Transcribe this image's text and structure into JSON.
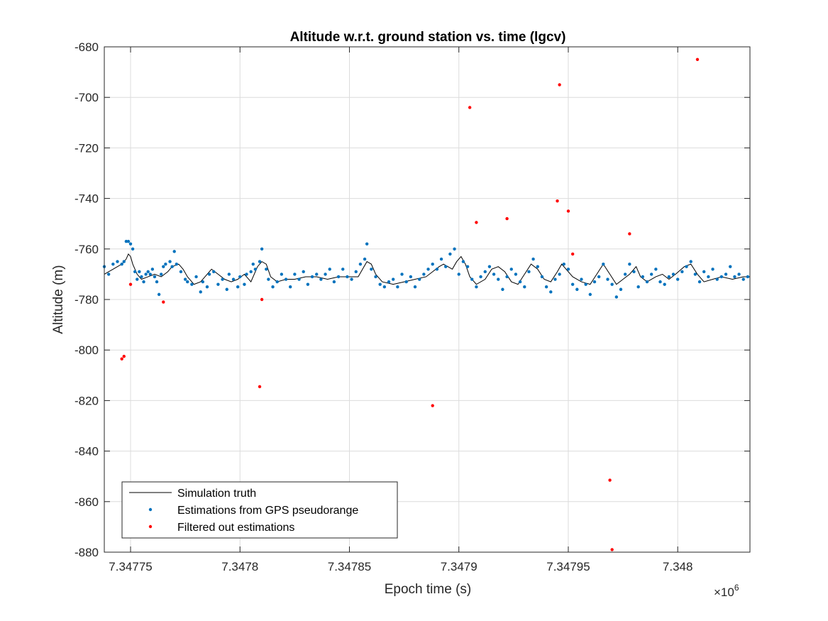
{
  "chart_data": {
    "type": "scatter",
    "title": "Altitude w.r.t. ground station vs. time (lgcv)",
    "xlabel": "Epoch time (s)",
    "ylabel": "Altitude (m)",
    "x_exponent_label": "×10",
    "x_exponent_power": "6",
    "x_scale": 1000000,
    "xlim": [
      7347738,
      7348033
    ],
    "ylim": [
      -880,
      -680
    ],
    "grid": true,
    "legend_position": "bottom-left",
    "x_ticks": [
      {
        "value": 7347750,
        "label": "7.34775"
      },
      {
        "value": 7347800,
        "label": "7.3478"
      },
      {
        "value": 7347850,
        "label": "7.34785"
      },
      {
        "value": 7347900,
        "label": "7.3479"
      },
      {
        "value": 7347950,
        "label": "7.34795"
      },
      {
        "value": 7348000,
        "label": "7.348"
      }
    ],
    "y_ticks": [
      {
        "value": -680,
        "label": "-680"
      },
      {
        "value": -700,
        "label": "-700"
      },
      {
        "value": -720,
        "label": "-720"
      },
      {
        "value": -740,
        "label": "-740"
      },
      {
        "value": -760,
        "label": "-760"
      },
      {
        "value": -780,
        "label": "-780"
      },
      {
        "value": -800,
        "label": "-800"
      },
      {
        "value": -820,
        "label": "-820"
      },
      {
        "value": -840,
        "label": "-840"
      },
      {
        "value": -860,
        "label": "-860"
      },
      {
        "value": -880,
        "label": "-880"
      }
    ],
    "series": [
      {
        "name": "Simulation truth",
        "kind": "line",
        "color": "#000000",
        "points": [
          [
            7347738,
            -770
          ],
          [
            7347740,
            -769
          ],
          [
            7347742,
            -768
          ],
          [
            7347744,
            -767
          ],
          [
            7347746,
            -766
          ],
          [
            7347748,
            -764
          ],
          [
            7347749,
            -762
          ],
          [
            7347750,
            -763
          ],
          [
            7347751,
            -766
          ],
          [
            7347753,
            -770
          ],
          [
            7347755,
            -772
          ],
          [
            7347758,
            -771
          ],
          [
            7347761,
            -770
          ],
          [
            7347764,
            -771
          ],
          [
            7347767,
            -769
          ],
          [
            7347769,
            -767
          ],
          [
            7347772,
            -766
          ],
          [
            7347774,
            -768
          ],
          [
            7347776,
            -771
          ],
          [
            7347779,
            -774
          ],
          [
            7347782,
            -773
          ],
          [
            7347785,
            -770
          ],
          [
            7347787,
            -768
          ],
          [
            7347790,
            -770
          ],
          [
            7347793,
            -772
          ],
          [
            7347796,
            -773
          ],
          [
            7347799,
            -772
          ],
          [
            7347802,
            -770
          ],
          [
            7347805,
            -773
          ],
          [
            7347808,
            -767
          ],
          [
            7347810,
            -765
          ],
          [
            7347812,
            -766
          ],
          [
            7347814,
            -771
          ],
          [
            7347817,
            -773
          ],
          [
            7347821,
            -772
          ],
          [
            7347825,
            -772
          ],
          [
            7347830,
            -771
          ],
          [
            7347835,
            -771
          ],
          [
            7347840,
            -772
          ],
          [
            7347845,
            -771
          ],
          [
            7347850,
            -771
          ],
          [
            7347854,
            -771
          ],
          [
            7347856,
            -768
          ],
          [
            7347858,
            -765
          ],
          [
            7347860,
            -766
          ],
          [
            7347862,
            -770
          ],
          [
            7347865,
            -773
          ],
          [
            7347870,
            -774
          ],
          [
            7347875,
            -773
          ],
          [
            7347880,
            -772
          ],
          [
            7347885,
            -771
          ],
          [
            7347888,
            -769
          ],
          [
            7347891,
            -767
          ],
          [
            7347893,
            -766
          ],
          [
            7347895,
            -767
          ],
          [
            7347897,
            -768
          ],
          [
            7347899,
            -765
          ],
          [
            7347901,
            -763
          ],
          [
            7347903,
            -766
          ],
          [
            7347905,
            -771
          ],
          [
            7347908,
            -774
          ],
          [
            7347912,
            -772
          ],
          [
            7347915,
            -768
          ],
          [
            7347918,
            -767
          ],
          [
            7347921,
            -769
          ],
          [
            7347924,
            -773
          ],
          [
            7347927,
            -774
          ],
          [
            7347930,
            -770
          ],
          [
            7347933,
            -766
          ],
          [
            7347936,
            -768
          ],
          [
            7347939,
            -772
          ],
          [
            7347942,
            -773
          ],
          [
            7347945,
            -769
          ],
          [
            7347947,
            -766
          ],
          [
            7347949,
            -768
          ],
          [
            7347952,
            -771
          ],
          [
            7347956,
            -773
          ],
          [
            7347960,
            -774
          ],
          [
            7347963,
            -770
          ],
          [
            7347966,
            -766
          ],
          [
            7347969,
            -770
          ],
          [
            7347972,
            -774
          ],
          [
            7347975,
            -772
          ],
          [
            7347978,
            -770
          ],
          [
            7347981,
            -767
          ],
          [
            7347983,
            -771
          ],
          [
            7347986,
            -773
          ],
          [
            7347990,
            -771
          ],
          [
            7347993,
            -770
          ],
          [
            7347996,
            -772
          ],
          [
            7347999,
            -770
          ],
          [
            7348003,
            -767
          ],
          [
            7348006,
            -766
          ],
          [
            7348009,
            -770
          ],
          [
            7348012,
            -773
          ],
          [
            7348016,
            -772
          ],
          [
            7348020,
            -771
          ],
          [
            7348025,
            -772
          ],
          [
            7348030,
            -771
          ],
          [
            7348033,
            -771
          ]
        ]
      },
      {
        "name": "Estimations from GPS pseudorange",
        "kind": "scatter",
        "color": "#0072BD",
        "points": [
          [
            7347738,
            -767
          ],
          [
            7347740,
            -770
          ],
          [
            7347742,
            -766
          ],
          [
            7347744,
            -765
          ],
          [
            7347746,
            -766
          ],
          [
            7347747,
            -765
          ],
          [
            7347748,
            -757
          ],
          [
            7347749,
            -757
          ],
          [
            7347750,
            -758
          ],
          [
            7347751,
            -760
          ],
          [
            7347752,
            -769
          ],
          [
            7347753,
            -772
          ],
          [
            7347754,
            -769
          ],
          [
            7347755,
            -771
          ],
          [
            7347756,
            -773
          ],
          [
            7347757,
            -770
          ],
          [
            7347758,
            -769
          ],
          [
            7347759,
            -770
          ],
          [
            7347760,
            -768
          ],
          [
            7347761,
            -771
          ],
          [
            7347762,
            -773
          ],
          [
            7347763,
            -778
          ],
          [
            7347764,
            -770
          ],
          [
            7347765,
            -767
          ],
          [
            7347766,
            -766
          ],
          [
            7347768,
            -765
          ],
          [
            7347769,
            -767
          ],
          [
            7347770,
            -761
          ],
          [
            7347771,
            -766
          ],
          [
            7347773,
            -769
          ],
          [
            7347775,
            -772
          ],
          [
            7347776,
            -773
          ],
          [
            7347778,
            -774
          ],
          [
            7347780,
            -771
          ],
          [
            7347782,
            -777
          ],
          [
            7347783,
            -773
          ],
          [
            7347785,
            -775
          ],
          [
            7347786,
            -770
          ],
          [
            7347788,
            -769
          ],
          [
            7347790,
            -774
          ],
          [
            7347792,
            -772
          ],
          [
            7347794,
            -776
          ],
          [
            7347795,
            -770
          ],
          [
            7347797,
            -772
          ],
          [
            7347799,
            -775
          ],
          [
            7347800,
            -771
          ],
          [
            7347802,
            -774
          ],
          [
            7347803,
            -770
          ],
          [
            7347805,
            -769
          ],
          [
            7347806,
            -766
          ],
          [
            7347807,
            -768
          ],
          [
            7347809,
            -765
          ],
          [
            7347810,
            -760
          ],
          [
            7347812,
            -768
          ],
          [
            7347813,
            -772
          ],
          [
            7347815,
            -775
          ],
          [
            7347817,
            -773
          ],
          [
            7347819,
            -770
          ],
          [
            7347821,
            -772
          ],
          [
            7347823,
            -775
          ],
          [
            7347825,
            -770
          ],
          [
            7347827,
            -772
          ],
          [
            7347829,
            -769
          ],
          [
            7347831,
            -774
          ],
          [
            7347833,
            -771
          ],
          [
            7347835,
            -770
          ],
          [
            7347837,
            -772
          ],
          [
            7347839,
            -770
          ],
          [
            7347841,
            -768
          ],
          [
            7347843,
            -773
          ],
          [
            7347845,
            -771
          ],
          [
            7347847,
            -768
          ],
          [
            7347849,
            -771
          ],
          [
            7347851,
            -772
          ],
          [
            7347853,
            -769
          ],
          [
            7347855,
            -766
          ],
          [
            7347857,
            -764
          ],
          [
            7347858,
            -758
          ],
          [
            7347860,
            -768
          ],
          [
            7347862,
            -771
          ],
          [
            7347864,
            -774
          ],
          [
            7347866,
            -775
          ],
          [
            7347868,
            -773
          ],
          [
            7347870,
            -772
          ],
          [
            7347872,
            -775
          ],
          [
            7347874,
            -770
          ],
          [
            7347876,
            -773
          ],
          [
            7347878,
            -771
          ],
          [
            7347880,
            -775
          ],
          [
            7347882,
            -772
          ],
          [
            7347884,
            -770
          ],
          [
            7347886,
            -768
          ],
          [
            7347888,
            -766
          ],
          [
            7347890,
            -768
          ],
          [
            7347892,
            -764
          ],
          [
            7347894,
            -767
          ],
          [
            7347896,
            -762
          ],
          [
            7347898,
            -760
          ],
          [
            7347900,
            -770
          ],
          [
            7347902,
            -765
          ],
          [
            7347904,
            -767
          ],
          [
            7347906,
            -772
          ],
          [
            7347908,
            -775
          ],
          [
            7347910,
            -771
          ],
          [
            7347912,
            -769
          ],
          [
            7347914,
            -767
          ],
          [
            7347916,
            -770
          ],
          [
            7347918,
            -772
          ],
          [
            7347920,
            -776
          ],
          [
            7347922,
            -771
          ],
          [
            7347924,
            -768
          ],
          [
            7347926,
            -770
          ],
          [
            7347928,
            -773
          ],
          [
            7347930,
            -775
          ],
          [
            7347932,
            -769
          ],
          [
            7347934,
            -764
          ],
          [
            7347936,
            -767
          ],
          [
            7347938,
            -771
          ],
          [
            7347940,
            -775
          ],
          [
            7347942,
            -777
          ],
          [
            7347944,
            -772
          ],
          [
            7347946,
            -770
          ],
          [
            7347948,
            -766
          ],
          [
            7347950,
            -768
          ],
          [
            7347952,
            -774
          ],
          [
            7347954,
            -776
          ],
          [
            7347956,
            -772
          ],
          [
            7347958,
            -774
          ],
          [
            7347960,
            -778
          ],
          [
            7347962,
            -773
          ],
          [
            7347964,
            -771
          ],
          [
            7347966,
            -766
          ],
          [
            7347968,
            -772
          ],
          [
            7347970,
            -774
          ],
          [
            7347972,
            -779
          ],
          [
            7347974,
            -776
          ],
          [
            7347976,
            -770
          ],
          [
            7347978,
            -766
          ],
          [
            7347980,
            -769
          ],
          [
            7347982,
            -775
          ],
          [
            7347984,
            -771
          ],
          [
            7347986,
            -773
          ],
          [
            7347988,
            -770
          ],
          [
            7347990,
            -768
          ],
          [
            7347992,
            -773
          ],
          [
            7347994,
            -774
          ],
          [
            7347996,
            -771
          ],
          [
            7347998,
            -770
          ],
          [
            7348000,
            -772
          ],
          [
            7348002,
            -769
          ],
          [
            7348004,
            -767
          ],
          [
            7348006,
            -765
          ],
          [
            7348008,
            -770
          ],
          [
            7348010,
            -773
          ],
          [
            7348012,
            -769
          ],
          [
            7348014,
            -771
          ],
          [
            7348016,
            -768
          ],
          [
            7348018,
            -772
          ],
          [
            7348020,
            -771
          ],
          [
            7348022,
            -770
          ],
          [
            7348024,
            -767
          ],
          [
            7348026,
            -771
          ],
          [
            7348028,
            -770
          ],
          [
            7348030,
            -772
          ],
          [
            7348032,
            -771
          ]
        ]
      },
      {
        "name": "Filtered out estimations",
        "kind": "scatter",
        "color": "#FF0000",
        "points": [
          [
            7347746,
            -803.5
          ],
          [
            7347747,
            -802.5
          ],
          [
            7347750,
            -774
          ],
          [
            7347765,
            -781
          ],
          [
            7347809,
            -814.5
          ],
          [
            7347810,
            -780
          ],
          [
            7347888,
            -822
          ],
          [
            7347905,
            -704
          ],
          [
            7347908,
            -749.5
          ],
          [
            7347922,
            -748
          ],
          [
            7347946,
            -695
          ],
          [
            7347945,
            -741
          ],
          [
            7347950,
            -745
          ],
          [
            7347952,
            -762
          ],
          [
            7347969,
            -851.5
          ],
          [
            7347970,
            -879
          ],
          [
            7347978,
            -754
          ],
          [
            7348009,
            -685
          ]
        ]
      }
    ]
  }
}
